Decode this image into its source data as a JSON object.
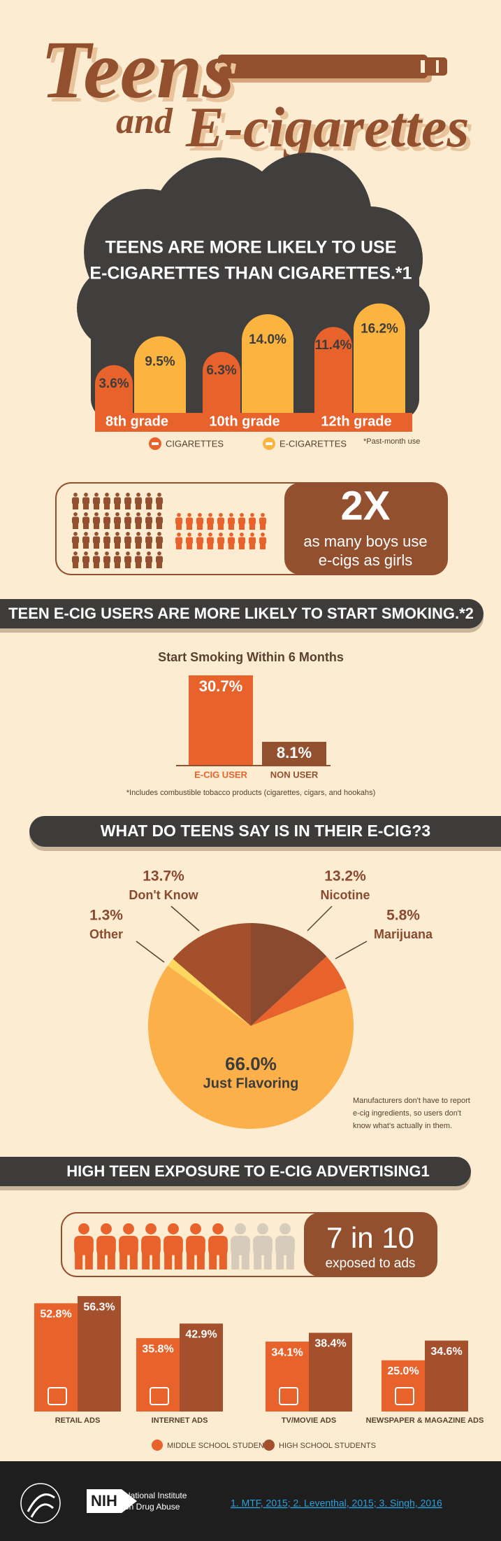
{
  "header": {
    "line1": "Teens",
    "line2": "and",
    "line3": "E-cigarettes"
  },
  "boys_girls": {
    "headline": "2X",
    "text_lines": [
      "as many boys use",
      "e-cigs as girls"
    ]
  },
  "exposure": {
    "headline": "7 in 10",
    "text": "exposed to ads"
  },
  "chart_data": [
    {
      "type": "bar",
      "title_lines": [
        "TEENS ARE MORE LIKELY TO USE",
        "E-CIGARETTES THAN CIGARETTES.*1"
      ],
      "categories": [
        "8th grade",
        "10th grade",
        "12th grade"
      ],
      "series": [
        {
          "name": "CIGARETTES",
          "color": "#e8622b",
          "values": [
            3.6,
            6.3,
            11.4
          ],
          "value_labels": [
            "3.6%",
            "6.3%",
            "11.4%"
          ]
        },
        {
          "name": "E-CIGARETTES",
          "color": "#fbb440",
          "values": [
            9.5,
            14.0,
            16.2
          ],
          "value_labels": [
            "9.5%",
            "14.0%",
            "16.2%"
          ]
        }
      ],
      "note": "*Past-month use"
    },
    {
      "type": "bar",
      "title": "TEEN E-CIG USERS ARE MORE LIKELY TO START SMOKING.*2",
      "subtitle": "Start Smoking Within 6 Months",
      "categories": [
        "E-CIG USER",
        "NON USER"
      ],
      "values": [
        30.7,
        8.1
      ],
      "value_labels": [
        "30.7%",
        "8.1%"
      ],
      "colors": [
        "#e8622b",
        "#93502f"
      ],
      "note": "*Includes combustible tobacco products (cigarettes, cigars, and hookahs)"
    },
    {
      "type": "pie",
      "title": "WHAT DO TEENS SAY IS IN THEIR E-CIG?3",
      "categories": [
        "Nicotine",
        "Marijuana",
        "Just Flavoring",
        "Other",
        "Don't Know"
      ],
      "values": [
        13.2,
        5.8,
        66.0,
        1.3,
        13.7
      ],
      "value_labels": [
        "13.2%",
        "5.8%",
        "66.0%",
        "1.3%",
        "13.7%"
      ],
      "colors": [
        "#8a4a30",
        "#e8622b",
        "#fbb04a",
        "#fdd75e",
        "#a4502c"
      ],
      "note_lines": [
        "Manufacturers don't have to report",
        "e-cig ingredients, so users don't",
        "know what's actually in them."
      ]
    },
    {
      "type": "bar",
      "title": "HIGH TEEN EXPOSURE TO E-CIG ADVERTISING1",
      "categories": [
        "RETAIL ADS",
        "INTERNET ADS",
        "TV/MOVIE ADS",
        "NEWSPAPER & MAGAZINE ADS"
      ],
      "series": [
        {
          "name": "MIDDLE SCHOOL STUDENTS",
          "color": "#e8622b",
          "values": [
            52.8,
            35.8,
            34.1,
            25.0
          ],
          "value_labels": [
            "52.8%",
            "35.8%",
            "34.1%",
            "25.0%"
          ]
        },
        {
          "name": "HIGH SCHOOL STUDENTS",
          "color": "#a4502c",
          "values": [
            56.3,
            42.9,
            38.4,
            34.6
          ],
          "value_labels": [
            "56.3%",
            "42.9%",
            "38.4%",
            "34.6%"
          ]
        }
      ]
    }
  ],
  "footer": {
    "org_short": "NIH",
    "org_lines": [
      "National Institute",
      "on Drug Abuse"
    ],
    "references": "1. MTF, 2015; 2. Leventhal, 2015; 3. Singh, 2016"
  }
}
